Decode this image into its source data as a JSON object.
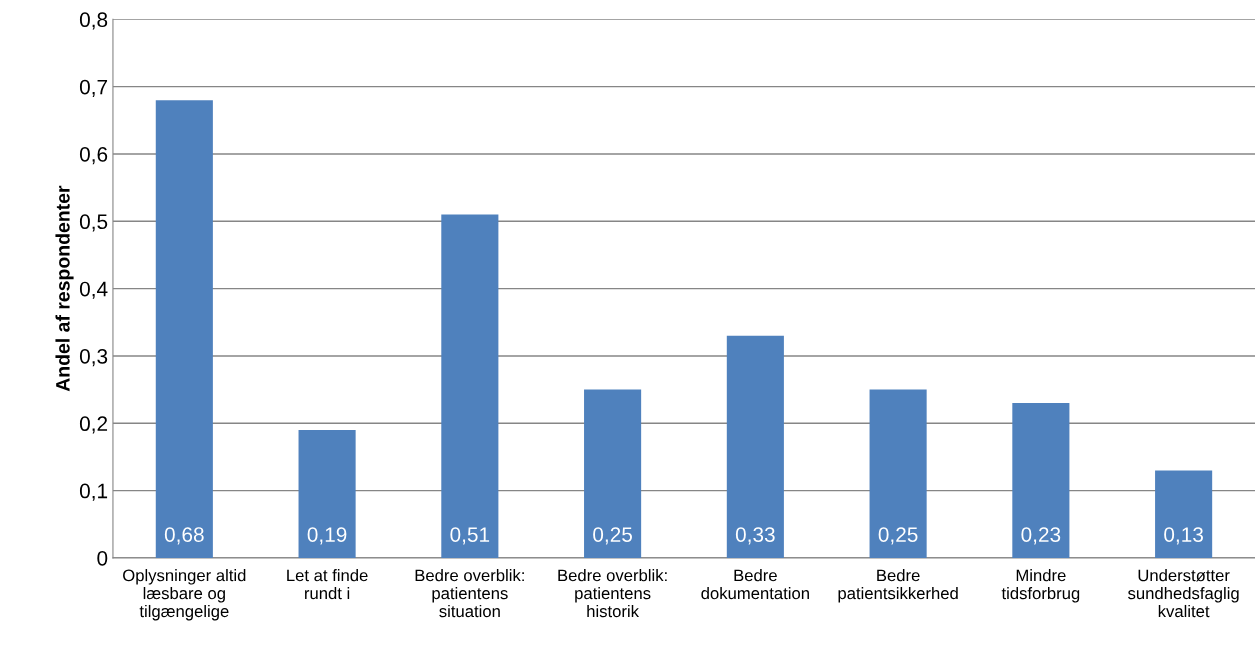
{
  "chart_data": {
    "type": "bar",
    "ylabel": "Andel af respondenter",
    "categories": [
      "Oplysninger altid\nlæsbare og\ntilgængelige",
      "Let at finde\nrundt i",
      "Bedre overblik:\npatientens\nsituation",
      "Bedre overblik:\npatientens\nhistorik",
      "Bedre\ndokumentation",
      "Bedre\npatientsikkerhed",
      "Mindre\ntidsforbrug",
      "Understøtter\nsundhedsfaglig\nkvalitet"
    ],
    "values": [
      0.68,
      0.19,
      0.51,
      0.25,
      0.33,
      0.25,
      0.23,
      0.13
    ],
    "value_labels": [
      "0,68",
      "0,19",
      "0,51",
      "0,25",
      "0,33",
      "0,25",
      "0,23",
      "0,13"
    ],
    "color": "#4f81bd",
    "ylim": [
      0,
      0.8
    ],
    "yticks": [
      0,
      {
        "value": 0.1,
        "label": "0,1"
      },
      {
        "value": 0.2,
        "label": "0,2"
      },
      {
        "value": 0.3,
        "label": "0,3"
      },
      {
        "value": 0.4,
        "label": "0,4"
      },
      {
        "value": 0.5,
        "label": "0,5"
      },
      {
        "value": 0.6,
        "label": "0,6"
      },
      {
        "value": 0.7,
        "label": "0,7"
      },
      {
        "value": 0.8,
        "label": "0,8"
      }
    ],
    "grid": "y",
    "legend": false
  }
}
